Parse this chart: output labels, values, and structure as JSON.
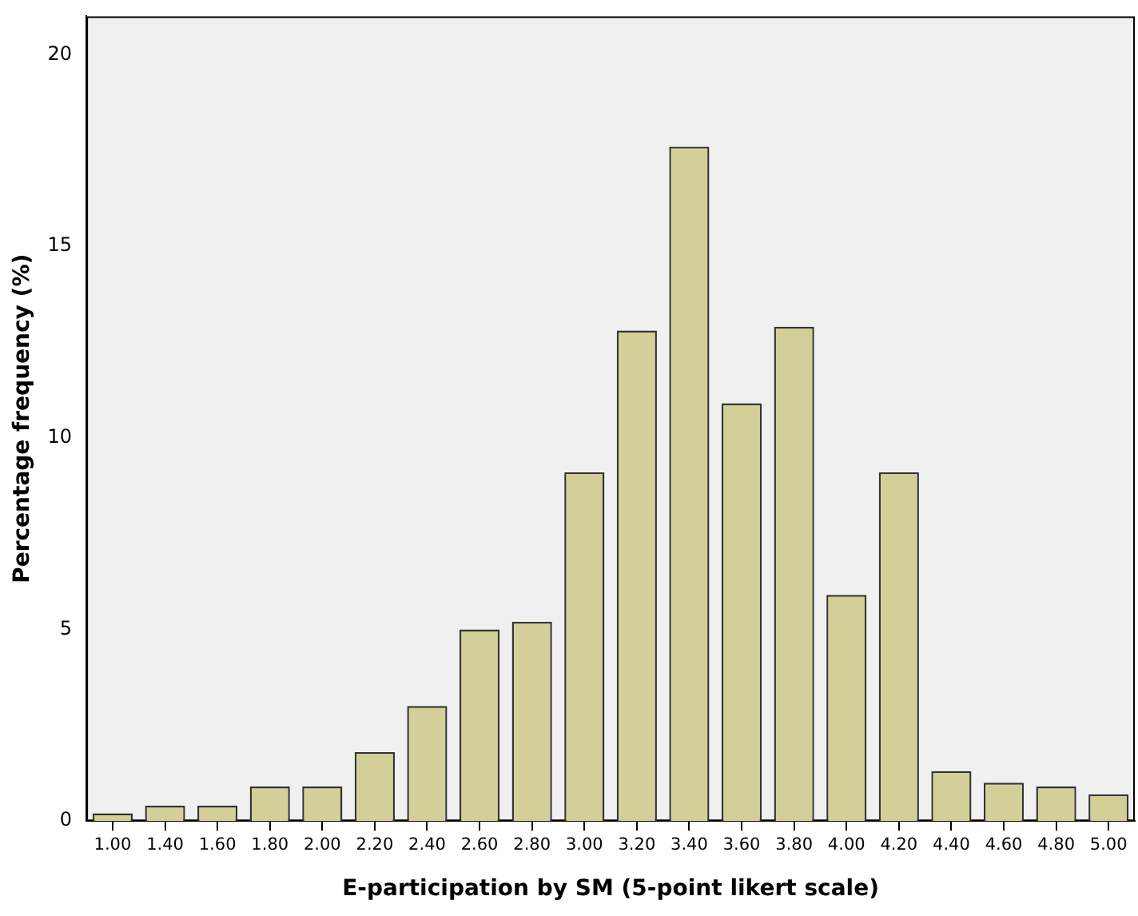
{
  "chart_data": {
    "type": "bar",
    "xlabel": "E-participation by SM (5-point likert scale)",
    "ylabel": "Percentage frequency (%)",
    "categories": [
      "1.00",
      "1.40",
      "1.60",
      "1.80",
      "2.00",
      "2.20",
      "2.40",
      "2.60",
      "2.80",
      "3.00",
      "3.20",
      "3.40",
      "3.60",
      "3.80",
      "4.00",
      "4.20",
      "4.40",
      "4.60",
      "4.80",
      "5.00"
    ],
    "values": [
      0.2,
      0.4,
      0.4,
      0.9,
      0.9,
      1.8,
      3.0,
      5.0,
      5.2,
      9.1,
      12.8,
      17.6,
      10.9,
      12.9,
      5.9,
      9.1,
      1.3,
      1.0,
      0.9,
      0.7
    ],
    "color": "#d3cf98",
    "ylim": [
      0,
      21
    ],
    "yticks": [
      0,
      5,
      10,
      15,
      20
    ],
    "grid": false,
    "legend": false
  }
}
